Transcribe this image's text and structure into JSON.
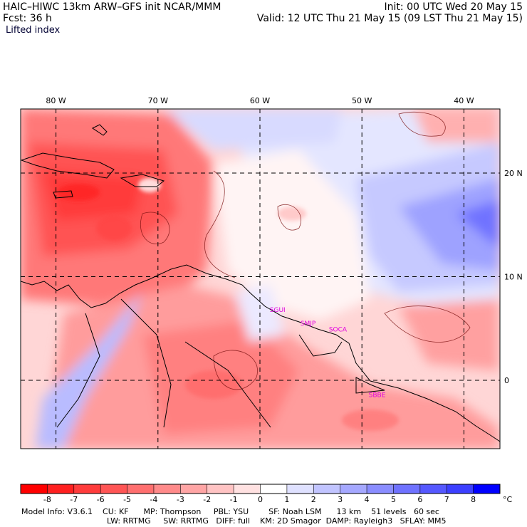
{
  "header": {
    "left_line1": "HAIC–HIWC 13km ARW–GFS init   NCAR/MMM",
    "left_line2": "Fcst:   36 h",
    "right_line1": "Init: 00 UTC Wed 20 May 15",
    "right_line2": "Valid: 12 UTC Thu 21 May 15 (09 LST Thu 21 May 15)",
    "field_name": "Lifted index"
  },
  "map": {
    "lon_labels": [
      {
        "text": "80 W",
        "lon": -80
      },
      {
        "text": "70 W",
        "lon": -70
      },
      {
        "text": "60 W",
        "lon": -60
      },
      {
        "text": "50 W",
        "lon": -50
      },
      {
        "text": "40 W",
        "lon": -40
      }
    ],
    "lat_labels": [
      {
        "text": "20 N",
        "lat": 20
      },
      {
        "text": "10 N",
        "lat": 10
      },
      {
        "text": "0",
        "lat": 0
      }
    ],
    "stations": [
      {
        "text": "SGUI",
        "lon": -58.2,
        "lat": 6.8
      },
      {
        "text": "SMJP",
        "lon": -55.2,
        "lat": 5.5
      },
      {
        "text": "SOCA",
        "lon": -52.4,
        "lat": 4.9
      },
      {
        "text": "SBBE",
        "lon": -48.5,
        "lat": -1.4
      }
    ]
  },
  "colorbar": {
    "labels": [
      "-8",
      "-7",
      "-6",
      "-5",
      "-4",
      "-3",
      "-2",
      "-1",
      "0",
      "1",
      "2",
      "3",
      "4",
      "5",
      "6",
      "7",
      "8"
    ],
    "unit": "°C",
    "colors": [
      "#ff0000",
      "#ff2020",
      "#ff3c3c",
      "#ff5555",
      "#ff6f6f",
      "#ff8a8a",
      "#ffa5a5",
      "#ffc3c3",
      "#ffe1e1",
      "#ffffff",
      "#dfe1ff",
      "#c1c4ff",
      "#a5a8ff",
      "#8a8dff",
      "#6f72ff",
      "#5558ff",
      "#3c3fff",
      "#0000ff"
    ]
  },
  "footer": {
    "line1": "Model Info: V3.6.1    CU: KF      MP: Thompson     PBL: YSU        SF: Noah LSM      13 km    51 levels   60 sec",
    "line2": "LW: RRTMG     SW: RRTMG   DIFF: full    KM: 2D Smagor  DAMP: Rayleigh3   SFLAY: MM5"
  }
}
